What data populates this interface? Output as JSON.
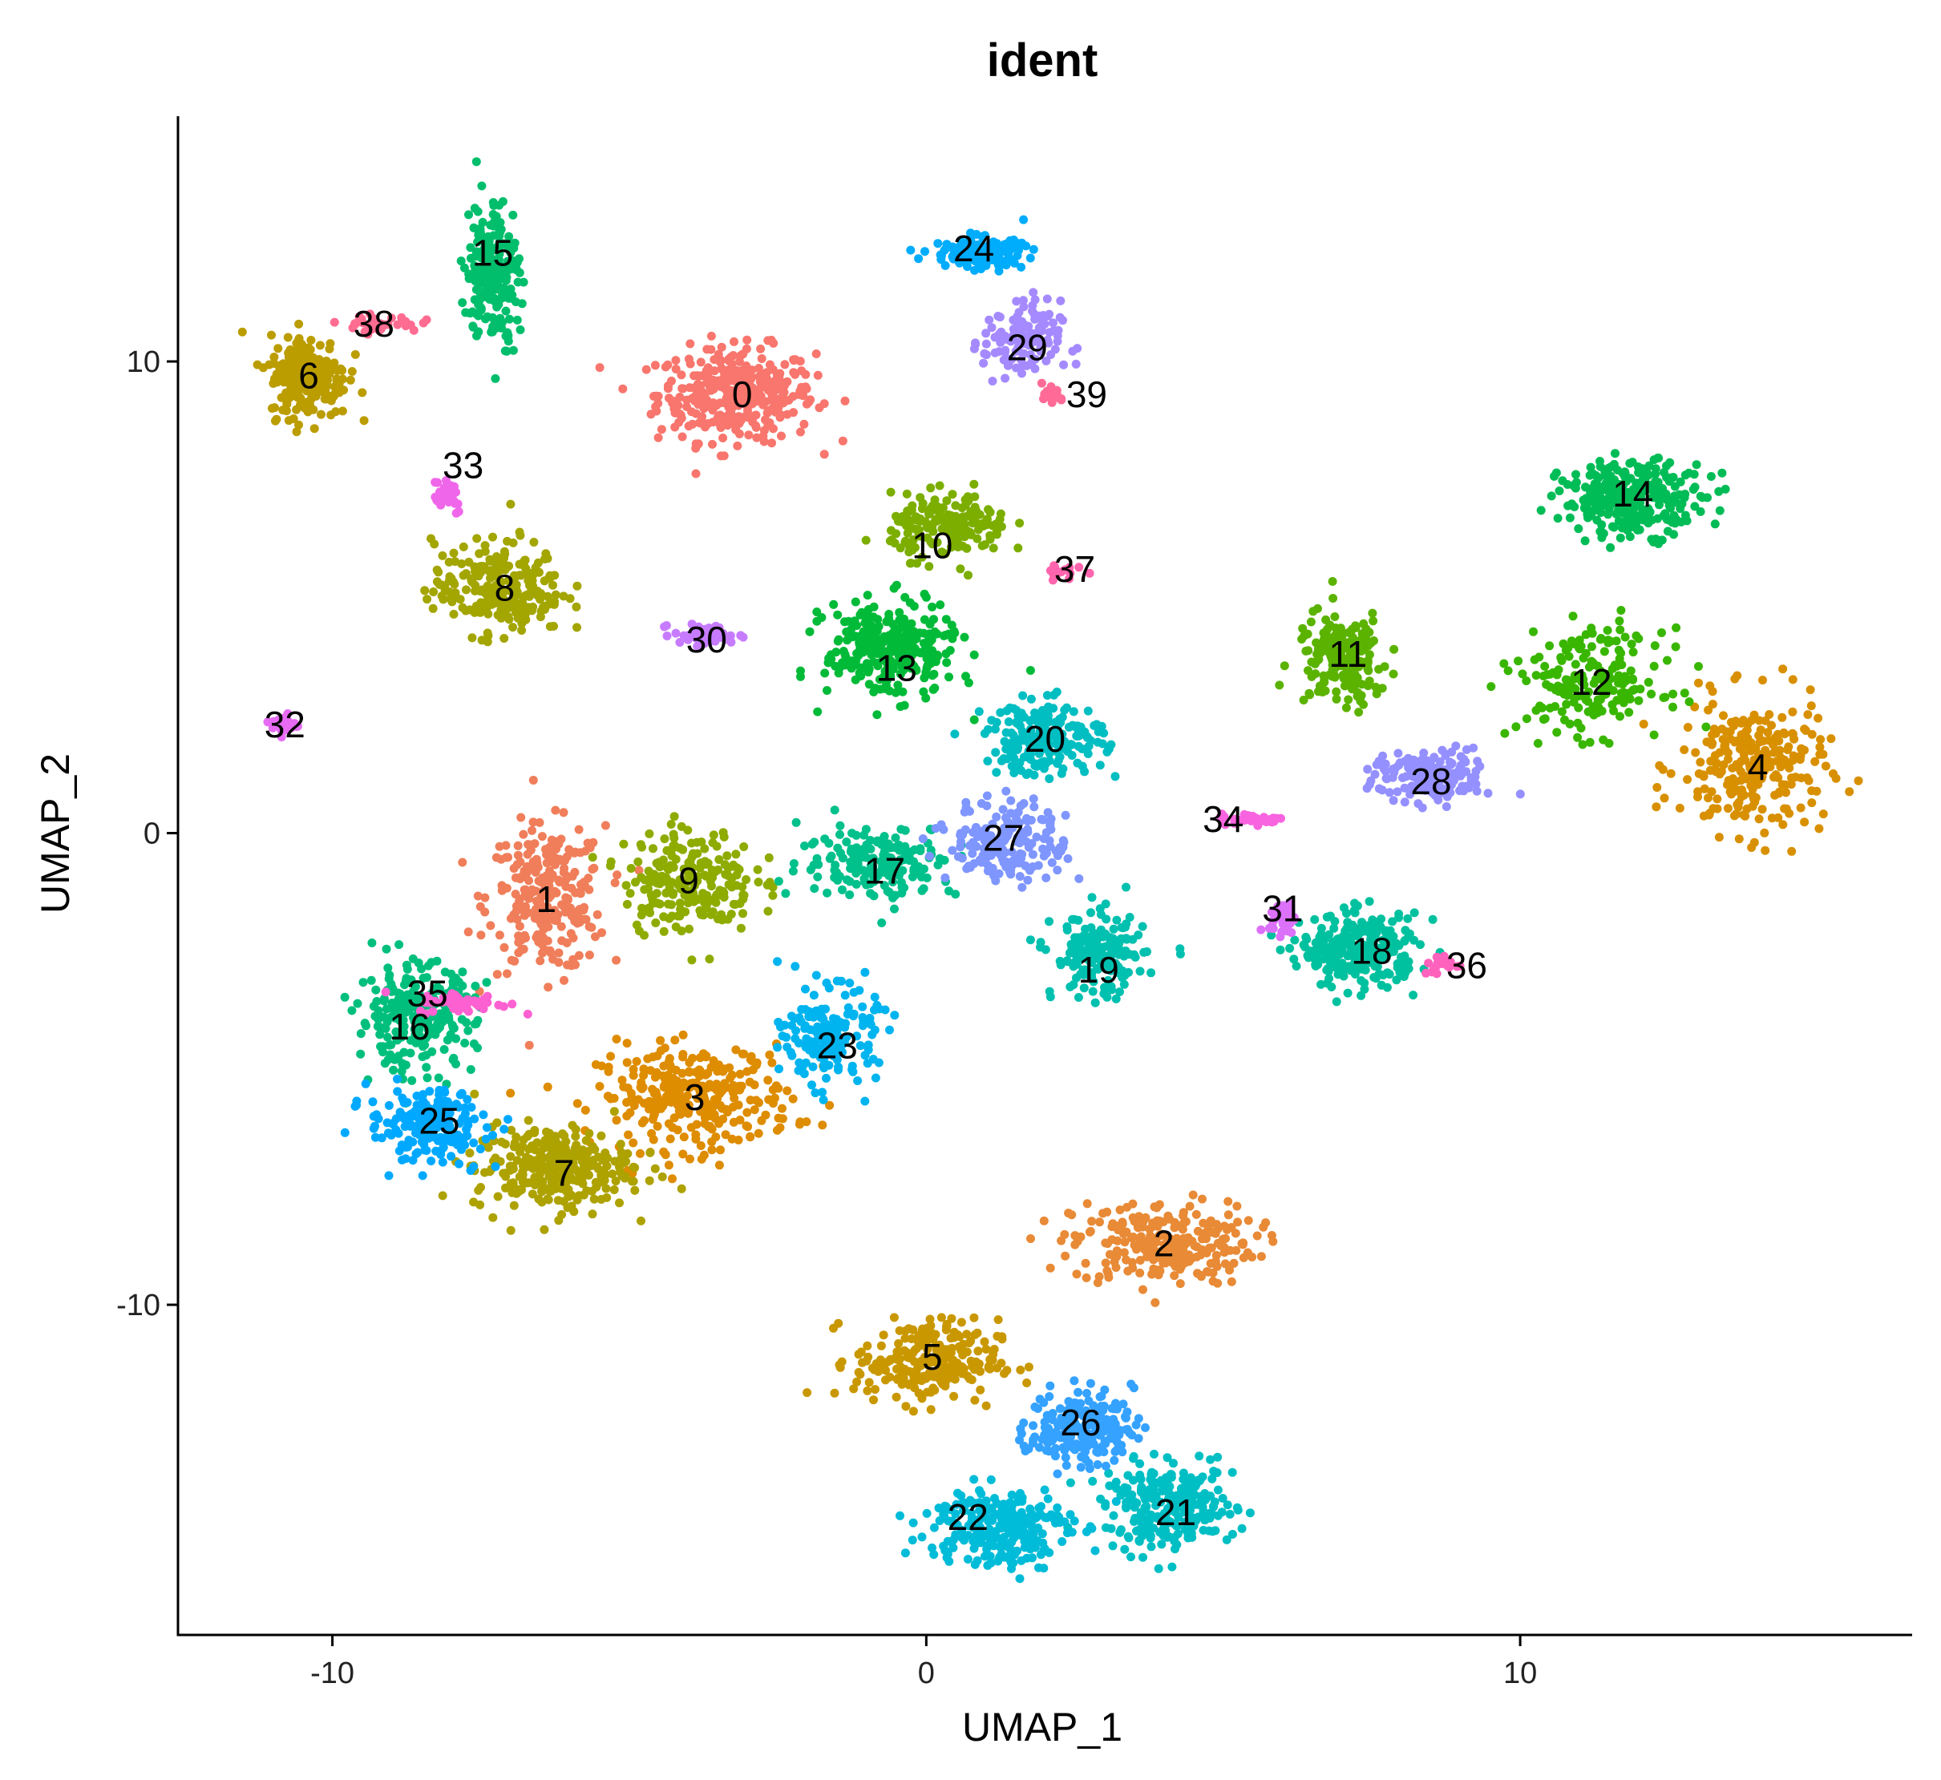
{
  "chart_data": {
    "type": "scatter",
    "title": "ident",
    "xlabel": "UMAP_1",
    "ylabel": "UMAP_2",
    "xlim": [
      -12.6,
      16.6
    ],
    "ylim": [
      -17.0,
      15.2
    ],
    "xticks": [
      -10,
      0,
      10
    ],
    "yticks": [
      -10,
      0,
      10
    ],
    "xtick_labels": [
      "-10",
      "0",
      "10"
    ],
    "ytick_labels": [
      "-10",
      "0",
      "10"
    ],
    "grid": false,
    "legend": "none",
    "clusters": [
      {
        "id": "0",
        "x": -3.2,
        "y": 9.3,
        "sx": 1.2,
        "sy": 0.9,
        "n": 360,
        "color": "#F8766D"
      },
      {
        "id": "1",
        "x": -6.4,
        "y": -1.4,
        "sx": 0.9,
        "sy": 1.4,
        "n": 260,
        "color": "#F07E5A"
      },
      {
        "id": "2",
        "x": 4.0,
        "y": -8.7,
        "sx": 1.4,
        "sy": 0.8,
        "n": 260,
        "color": "#E88A36"
      },
      {
        "id": "3",
        "x": -3.9,
        "y": -5.6,
        "sx": 1.5,
        "sy": 1.0,
        "n": 300,
        "color": "#DE8C00"
      },
      {
        "id": "4",
        "x": 13.9,
        "y": 1.4,
        "sx": 1.1,
        "sy": 1.3,
        "n": 260,
        "color": "#D89000"
      },
      {
        "id": "5",
        "x": 0.0,
        "y": -11.2,
        "sx": 1.1,
        "sy": 0.8,
        "n": 240,
        "color": "#C99800"
      },
      {
        "id": "6",
        "x": -10.4,
        "y": 9.7,
        "sx": 0.6,
        "sy": 0.8,
        "n": 220,
        "color": "#BB9D00"
      },
      {
        "id": "7",
        "x": -6.3,
        "y": -7.1,
        "sx": 1.2,
        "sy": 0.8,
        "n": 300,
        "color": "#ADA200"
      },
      {
        "id": "8",
        "x": -7.2,
        "y": 5.2,
        "sx": 1.0,
        "sy": 0.9,
        "n": 240,
        "color": "#A3A500"
      },
      {
        "id": "9",
        "x": -4.0,
        "y": -1.0,
        "sx": 1.0,
        "sy": 1.0,
        "n": 220,
        "color": "#8EAB00"
      },
      {
        "id": "10",
        "x": 0.4,
        "y": 6.5,
        "sx": 0.9,
        "sy": 0.6,
        "n": 180,
        "color": "#7CAE00"
      },
      {
        "id": "11",
        "x": 7.0,
        "y": 3.7,
        "sx": 0.7,
        "sy": 0.9,
        "n": 180,
        "color": "#5BB300"
      },
      {
        "id": "12",
        "x": 11.2,
        "y": 3.2,
        "sx": 1.1,
        "sy": 1.0,
        "n": 200,
        "color": "#39B600"
      },
      {
        "id": "13",
        "x": -0.6,
        "y": 3.9,
        "sx": 1.0,
        "sy": 0.9,
        "n": 300,
        "color": "#00BA38"
      },
      {
        "id": "14",
        "x": 11.9,
        "y": 7.1,
        "sx": 1.1,
        "sy": 0.7,
        "n": 280,
        "color": "#00BC56"
      },
      {
        "id": "15",
        "x": -7.3,
        "y": 11.9,
        "sx": 0.4,
        "sy": 1.4,
        "n": 220,
        "color": "#00BE6C"
      },
      {
        "id": "16",
        "x": -8.6,
        "y": -3.9,
        "sx": 0.9,
        "sy": 1.0,
        "n": 260,
        "color": "#00BF7D"
      },
      {
        "id": "17",
        "x": -0.8,
        "y": -0.6,
        "sx": 1.2,
        "sy": 0.7,
        "n": 180,
        "color": "#00C08B"
      },
      {
        "id": "18",
        "x": 7.3,
        "y": -2.5,
        "sx": 0.9,
        "sy": 0.7,
        "n": 260,
        "color": "#00C19F"
      },
      {
        "id": "19",
        "x": 2.9,
        "y": -2.6,
        "sx": 0.7,
        "sy": 0.8,
        "n": 180,
        "color": "#00C0AF"
      },
      {
        "id": "20",
        "x": 2.0,
        "y": 2.0,
        "sx": 0.9,
        "sy": 0.7,
        "n": 200,
        "color": "#00BEC1"
      },
      {
        "id": "21",
        "x": 4.1,
        "y": -14.3,
        "sx": 1.0,
        "sy": 0.8,
        "n": 260,
        "color": "#00BFC4"
      },
      {
        "id": "22",
        "x": 1.2,
        "y": -14.7,
        "sx": 1.1,
        "sy": 0.8,
        "n": 240,
        "color": "#00BCD8"
      },
      {
        "id": "23",
        "x": -1.6,
        "y": -4.3,
        "sx": 0.7,
        "sy": 0.9,
        "n": 180,
        "color": "#00B4EF"
      },
      {
        "id": "24",
        "x": 0.9,
        "y": 12.3,
        "sx": 0.7,
        "sy": 0.3,
        "n": 160,
        "color": "#00ACFC"
      },
      {
        "id": "25",
        "x": -8.4,
        "y": -6.2,
        "sx": 0.9,
        "sy": 0.7,
        "n": 200,
        "color": "#00A9FF"
      },
      {
        "id": "26",
        "x": 2.6,
        "y": -12.6,
        "sx": 0.8,
        "sy": 0.7,
        "n": 200,
        "color": "#35A2FF"
      },
      {
        "id": "27",
        "x": 1.4,
        "y": -0.2,
        "sx": 0.9,
        "sy": 0.8,
        "n": 180,
        "color": "#7F96FF"
      },
      {
        "id": "28",
        "x": 8.5,
        "y": 1.2,
        "sx": 0.9,
        "sy": 0.5,
        "n": 160,
        "color": "#9590FF"
      },
      {
        "id": "29",
        "x": 1.6,
        "y": 10.4,
        "sx": 0.6,
        "sy": 0.8,
        "n": 120,
        "color": "#A58AFF"
      },
      {
        "id": "30",
        "x": -3.7,
        "y": 4.2,
        "sx": 0.5,
        "sy": 0.2,
        "n": 60,
        "color": "#C77CFF"
      },
      {
        "id": "31",
        "x": 6.0,
        "y": -1.8,
        "sx": 0.2,
        "sy": 0.3,
        "n": 40,
        "color": "#DC71FA"
      },
      {
        "id": "32",
        "x": -10.8,
        "y": 2.3,
        "sx": 0.2,
        "sy": 0.2,
        "n": 30,
        "color": "#E76BF3"
      },
      {
        "id": "33",
        "x": -8.1,
        "y": 7.2,
        "sx": 0.3,
        "sy": 0.4,
        "n": 30,
        "color": "#F066EA"
      },
      {
        "id": "34",
        "x": 5.5,
        "y": 0.3,
        "sx": 0.5,
        "sy": 0.1,
        "n": 40,
        "color": "#F863DF"
      },
      {
        "id": "35",
        "x": -7.8,
        "y": -3.6,
        "sx": 0.7,
        "sy": 0.2,
        "n": 50,
        "color": "#FD61D1"
      },
      {
        "id": "36",
        "x": 8.7,
        "y": -2.8,
        "sx": 0.3,
        "sy": 0.2,
        "n": 25,
        "color": "#FF62BC"
      },
      {
        "id": "37",
        "x": 2.3,
        "y": 5.6,
        "sx": 0.3,
        "sy": 0.2,
        "n": 15,
        "color": "#FF65AE"
      },
      {
        "id": "38",
        "x": -9.2,
        "y": 10.8,
        "sx": 0.6,
        "sy": 0.15,
        "n": 40,
        "color": "#FF6C91"
      },
      {
        "id": "39",
        "x": 2.1,
        "y": 9.3,
        "sx": 0.2,
        "sy": 0.2,
        "n": 15,
        "color": "#FF6B96"
      }
    ],
    "label_positions": [
      {
        "id": "0",
        "x": -3.1,
        "y": 9.3
      },
      {
        "id": "1",
        "x": -6.4,
        "y": -1.4
      },
      {
        "id": "2",
        "x": 4.0,
        "y": -8.7
      },
      {
        "id": "3",
        "x": -3.9,
        "y": -5.6
      },
      {
        "id": "4",
        "x": 14.0,
        "y": 1.4
      },
      {
        "id": "5",
        "x": 0.1,
        "y": -11.1
      },
      {
        "id": "6",
        "x": -10.4,
        "y": 9.7
      },
      {
        "id": "7",
        "x": -6.1,
        "y": -7.2
      },
      {
        "id": "8",
        "x": -7.1,
        "y": 5.2
      },
      {
        "id": "9",
        "x": -4.0,
        "y": -1.0
      },
      {
        "id": "10",
        "x": 0.1,
        "y": 6.1
      },
      {
        "id": "11",
        "x": 7.1,
        "y": 3.8
      },
      {
        "id": "12",
        "x": 11.2,
        "y": 3.2
      },
      {
        "id": "13",
        "x": -0.5,
        "y": 3.5
      },
      {
        "id": "14",
        "x": 11.9,
        "y": 7.2
      },
      {
        "id": "15",
        "x": -7.3,
        "y": 12.3
      },
      {
        "id": "16",
        "x": -8.7,
        "y": -4.1
      },
      {
        "id": "17",
        "x": -0.7,
        "y": -0.8
      },
      {
        "id": "18",
        "x": 7.5,
        "y": -2.5
      },
      {
        "id": "19",
        "x": 2.9,
        "y": -2.9
      },
      {
        "id": "20",
        "x": 2.0,
        "y": 2.0
      },
      {
        "id": "21",
        "x": 4.2,
        "y": -14.4
      },
      {
        "id": "22",
        "x": 0.7,
        "y": -14.5
      },
      {
        "id": "23",
        "x": -1.5,
        "y": -4.5
      },
      {
        "id": "24",
        "x": 0.8,
        "y": 12.4
      },
      {
        "id": "25",
        "x": -8.2,
        "y": -6.1
      },
      {
        "id": "26",
        "x": 2.6,
        "y": -12.5
      },
      {
        "id": "27",
        "x": 1.3,
        "y": -0.1
      },
      {
        "id": "28",
        "x": 8.5,
        "y": 1.1
      },
      {
        "id": "29",
        "x": 1.7,
        "y": 10.3
      },
      {
        "id": "30",
        "x": -3.7,
        "y": 4.1
      },
      {
        "id": "31",
        "x": 6.0,
        "y": -1.6
      },
      {
        "id": "32",
        "x": -10.8,
        "y": 2.3
      },
      {
        "id": "33",
        "x": -7.8,
        "y": 7.8
      },
      {
        "id": "34",
        "x": 5.0,
        "y": 0.3
      },
      {
        "id": "35",
        "x": -8.4,
        "y": -3.4
      },
      {
        "id": "36",
        "x": 9.1,
        "y": -2.8
      },
      {
        "id": "37",
        "x": 2.5,
        "y": 5.6
      },
      {
        "id": "38",
        "x": -9.3,
        "y": 10.8
      },
      {
        "id": "39",
        "x": 2.7,
        "y": 9.3
      }
    ]
  }
}
